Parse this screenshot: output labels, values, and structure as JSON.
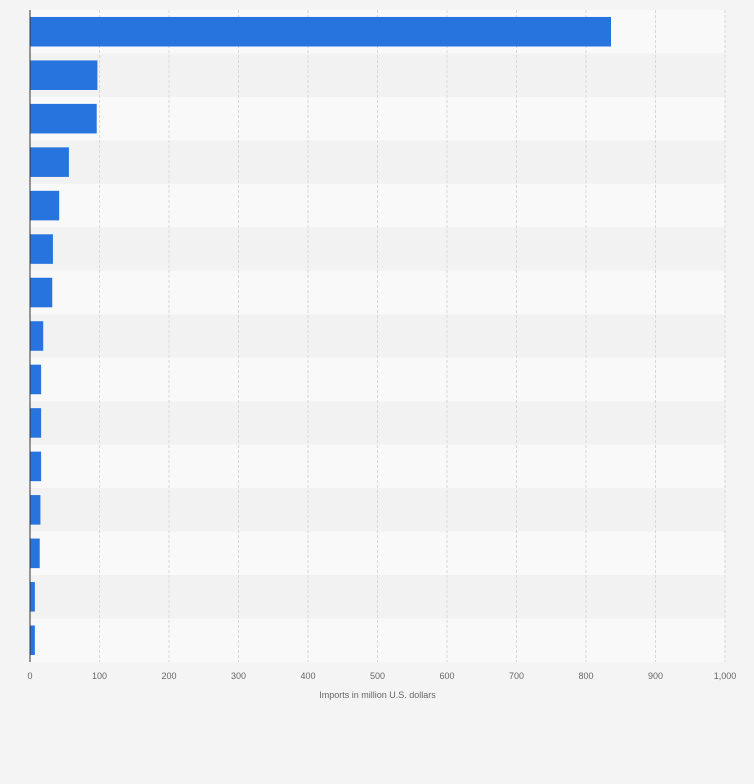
{
  "colors": {
    "bar": "#2874de",
    "band_light": "#f9f9f9",
    "band_dark": "#f2f2f2",
    "grid": "#d8d8d8",
    "axis": "#333333",
    "tick_text": "#666666",
    "page_background": "#f4f4f4"
  },
  "chart_data": {
    "type": "bar",
    "orientation": "horizontal",
    "categories": [
      "",
      "",
      "",
      "",
      "",
      "",
      "",
      "",
      "",
      "",
      "",
      "",
      "",
      "",
      ""
    ],
    "values": [
      836,
      97,
      96,
      56,
      42,
      33,
      32,
      19,
      16,
      16,
      16,
      15,
      14,
      7,
      7
    ],
    "xlabel": "Imports in million U.S. dollars",
    "ylabel": "",
    "xlim": [
      0,
      1000
    ],
    "xticks": [
      0,
      100,
      200,
      300,
      400,
      500,
      600,
      700,
      800,
      900,
      1000
    ],
    "xtick_labels": [
      "0",
      "100",
      "200",
      "300",
      "400",
      "500",
      "600",
      "700",
      "800",
      "900",
      "1,000"
    ],
    "grid": "vertical dashed",
    "legend": "none"
  }
}
